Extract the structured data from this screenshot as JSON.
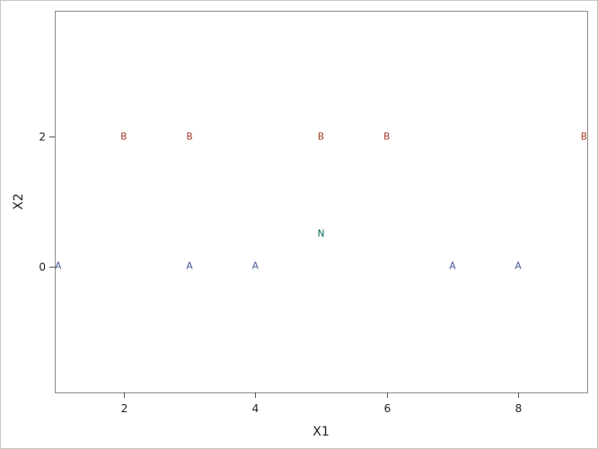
{
  "chart_data": {
    "type": "scatter",
    "title": "",
    "xlabel": "X1",
    "ylabel": "X2",
    "xlim": [
      0.95,
      9.05
    ],
    "ylim": [
      -1.95,
      3.95
    ],
    "xticks": [
      2,
      4,
      6,
      8
    ],
    "yticks": [
      0,
      2
    ],
    "grid": false,
    "legend": "none",
    "groups": [
      {
        "label": "A",
        "color": "#445694"
      },
      {
        "label": "B",
        "color": "#a23a2e"
      },
      {
        "label": "N",
        "color": "#01665e"
      }
    ],
    "points": [
      {
        "x": 1,
        "y": 0,
        "label": "A"
      },
      {
        "x": 3,
        "y": 0,
        "label": "A"
      },
      {
        "x": 4,
        "y": 0,
        "label": "A"
      },
      {
        "x": 7,
        "y": 0,
        "label": "A"
      },
      {
        "x": 8,
        "y": 0,
        "label": "A"
      },
      {
        "x": 2,
        "y": 2,
        "label": "B"
      },
      {
        "x": 3,
        "y": 2,
        "label": "B"
      },
      {
        "x": 5,
        "y": 2,
        "label": "B"
      },
      {
        "x": 6,
        "y": 2,
        "label": "B"
      },
      {
        "x": 9,
        "y": 2,
        "label": "B"
      },
      {
        "x": 5,
        "y": 0.5,
        "label": "N"
      }
    ]
  }
}
